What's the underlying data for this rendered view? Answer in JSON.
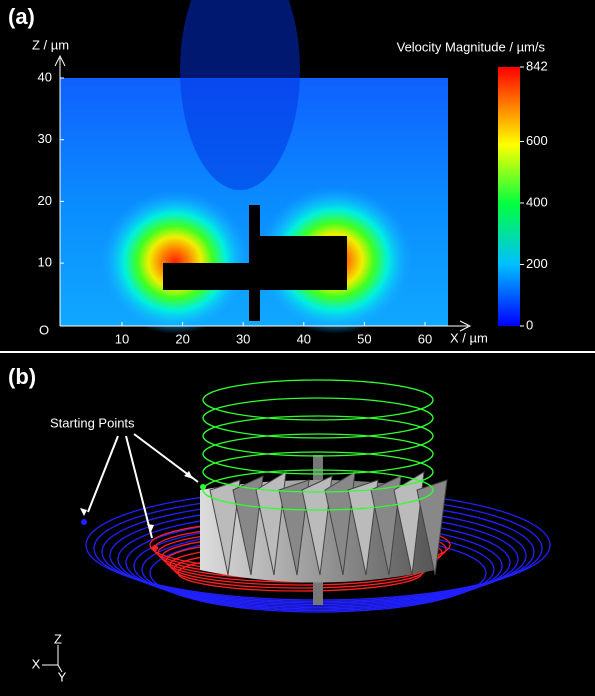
{
  "panel_a": {
    "label": "(a)",
    "y_axis_label": "Z / µm",
    "x_axis_label": "X / µm",
    "origin_label": "O",
    "xticks": [
      "10",
      "20",
      "30",
      "40",
      "50",
      "60"
    ],
    "yticks": [
      "40",
      "30",
      "20",
      "10"
    ],
    "colorbar_title": "Velocity Magnitude / µm/s",
    "colorbar_ticks": [
      0,
      200,
      400,
      600,
      842
    ]
  },
  "panel_b": {
    "label": "(b)",
    "annotation": "Starting Points",
    "axis_triad": [
      "Z",
      "X",
      "Y"
    ]
  }
}
